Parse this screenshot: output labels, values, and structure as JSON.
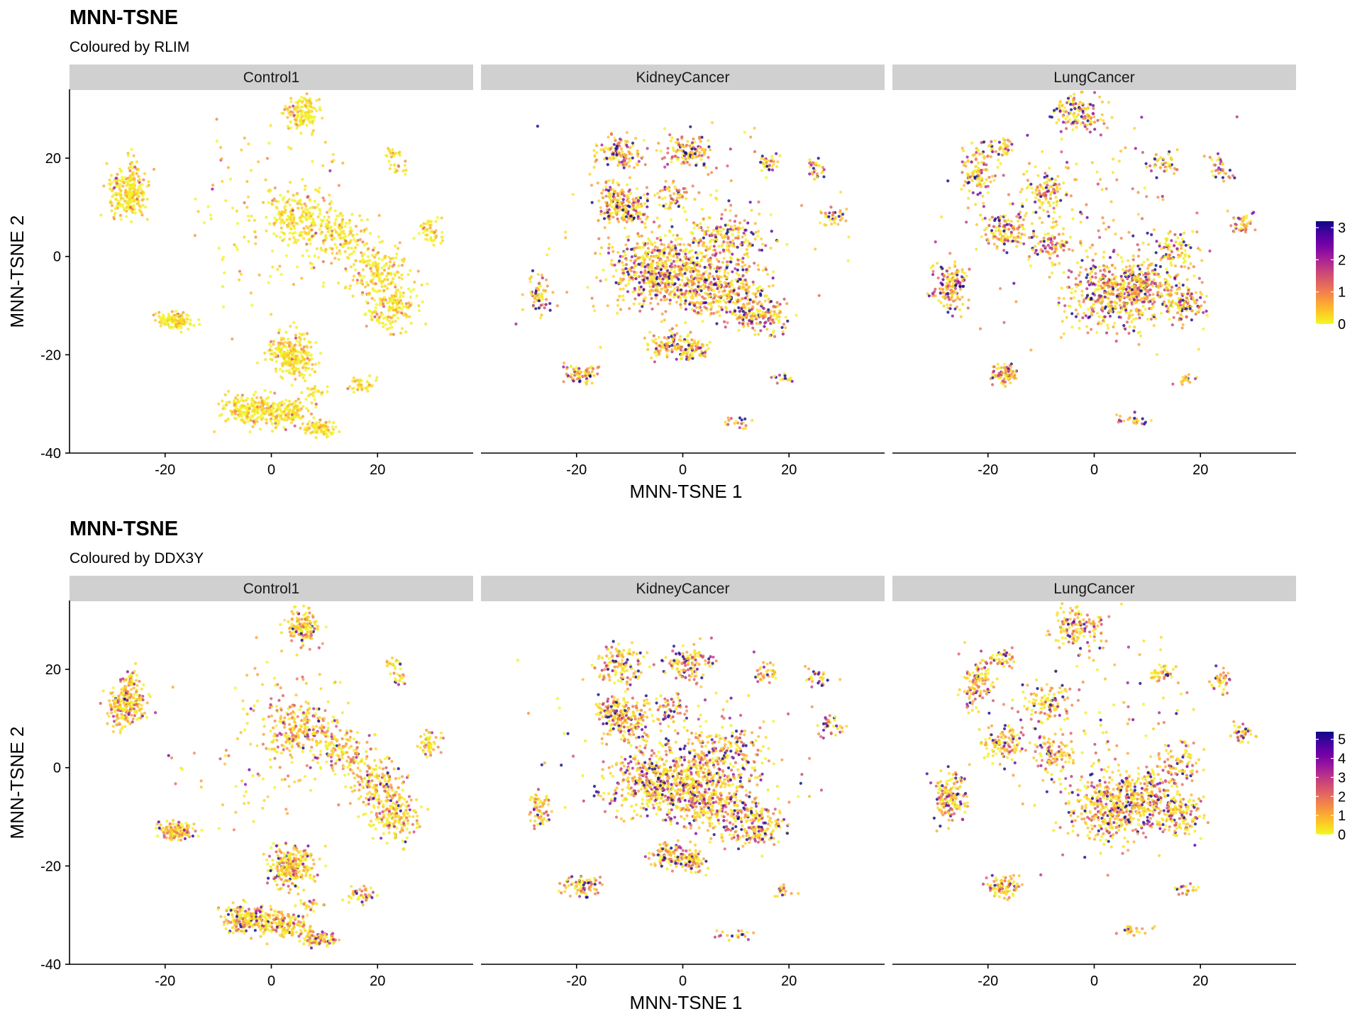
{
  "chart_data": [
    {
      "type": "scatter",
      "title": "MNN-TSNE",
      "subtitle": "Coloured by RLIM",
      "xlabel": "MNN-TSNE 1",
      "ylabel": "MNN-TSNE 2",
      "xlim": [
        -38,
        38
      ],
      "ylim": [
        -40,
        34
      ],
      "x_ticks": [
        -20,
        0,
        20
      ],
      "y_ticks": [
        20,
        0,
        -20,
        -40
      ],
      "x_tick_labels": [
        "-20",
        "0",
        "20"
      ],
      "y_tick_labels": [
        "20",
        "0",
        "-20",
        "-40"
      ],
      "grid": false,
      "facets": [
        "Control1",
        "KidneyCancer",
        "LungCancer"
      ],
      "colorbar": {
        "ticks": [
          0,
          1,
          2,
          3
        ],
        "tick_labels": [
          "0",
          "1",
          "2",
          "3"
        ],
        "max": 3.2,
        "position": "right"
      },
      "color_scale": [
        "#f0f921",
        "#fdca26",
        "#fb9f3a",
        "#ed7953",
        "#d8576b",
        "#bd3786",
        "#9c179e",
        "#7201a8",
        "#46039f",
        "#0d0887"
      ],
      "facet_mean_levels": [
        0.12,
        0.45,
        0.45
      ]
    },
    {
      "type": "scatter",
      "title": "MNN-TSNE",
      "subtitle": "Coloured by DDX3Y",
      "xlabel": "MNN-TSNE 1",
      "ylabel": "MNN-TSNE 2",
      "xlim": [
        -38,
        38
      ],
      "ylim": [
        -40,
        34
      ],
      "x_ticks": [
        -20,
        0,
        20
      ],
      "y_ticks": [
        20,
        0,
        -20,
        -40
      ],
      "x_tick_labels": [
        "-20",
        "0",
        "20"
      ],
      "y_tick_labels": [
        "20",
        "0",
        "-20",
        "-40"
      ],
      "grid": false,
      "facets": [
        "Control1",
        "KidneyCancer",
        "LungCancer"
      ],
      "colorbar": {
        "ticks": [
          0,
          1,
          2,
          3,
          4,
          5
        ],
        "tick_labels": [
          "0",
          "1",
          "2",
          "3",
          "4",
          "5"
        ],
        "max": 5.4,
        "position": "right"
      },
      "color_scale": [
        "#f0f921",
        "#fdca26",
        "#fb9f3a",
        "#ed7953",
        "#d8576b",
        "#bd3786",
        "#9c179e",
        "#7201a8",
        "#46039f",
        "#0d0887"
      ],
      "facet_mean_levels": [
        0.28,
        0.45,
        0.4
      ]
    }
  ]
}
